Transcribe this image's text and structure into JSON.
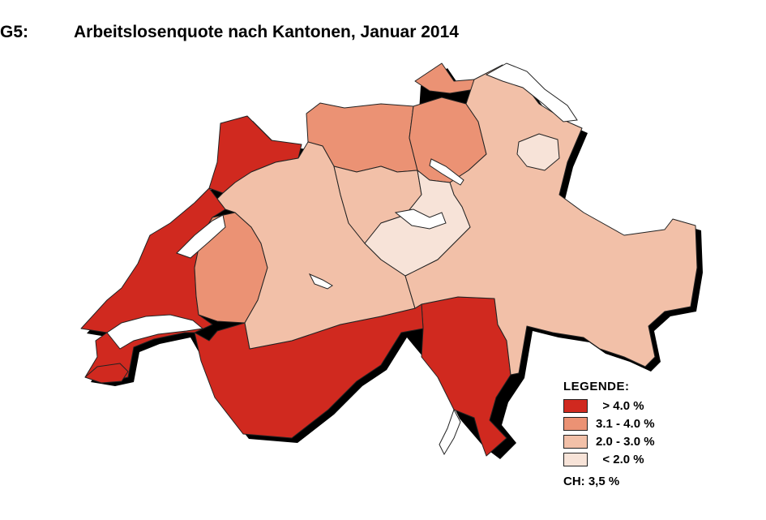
{
  "figure": {
    "label": "G5:",
    "title": "Arbeitslosenquote nach Kantonen, Januar 2014"
  },
  "legend": {
    "heading": "LEGENDE:",
    "classes": [
      {
        "label": "  > 4.0 %",
        "color": "#d0291f"
      },
      {
        "label": "3.1 - 4.0 %",
        "color": "#eb9274"
      },
      {
        "label": "2.0 - 3.0 %",
        "color": "#f2c0a8"
      },
      {
        "label": "  < 2.0 %",
        "color": "#f7e3d8"
      }
    ]
  },
  "national_note": "CH: 3,5 %",
  "colors": {
    "high": "#d0291f",
    "mid_high": "#eb9274",
    "mid_low": "#f2c0a8",
    "low": "#f7e3d8",
    "shadow": "#000000",
    "lake": "#ffffff"
  }
}
